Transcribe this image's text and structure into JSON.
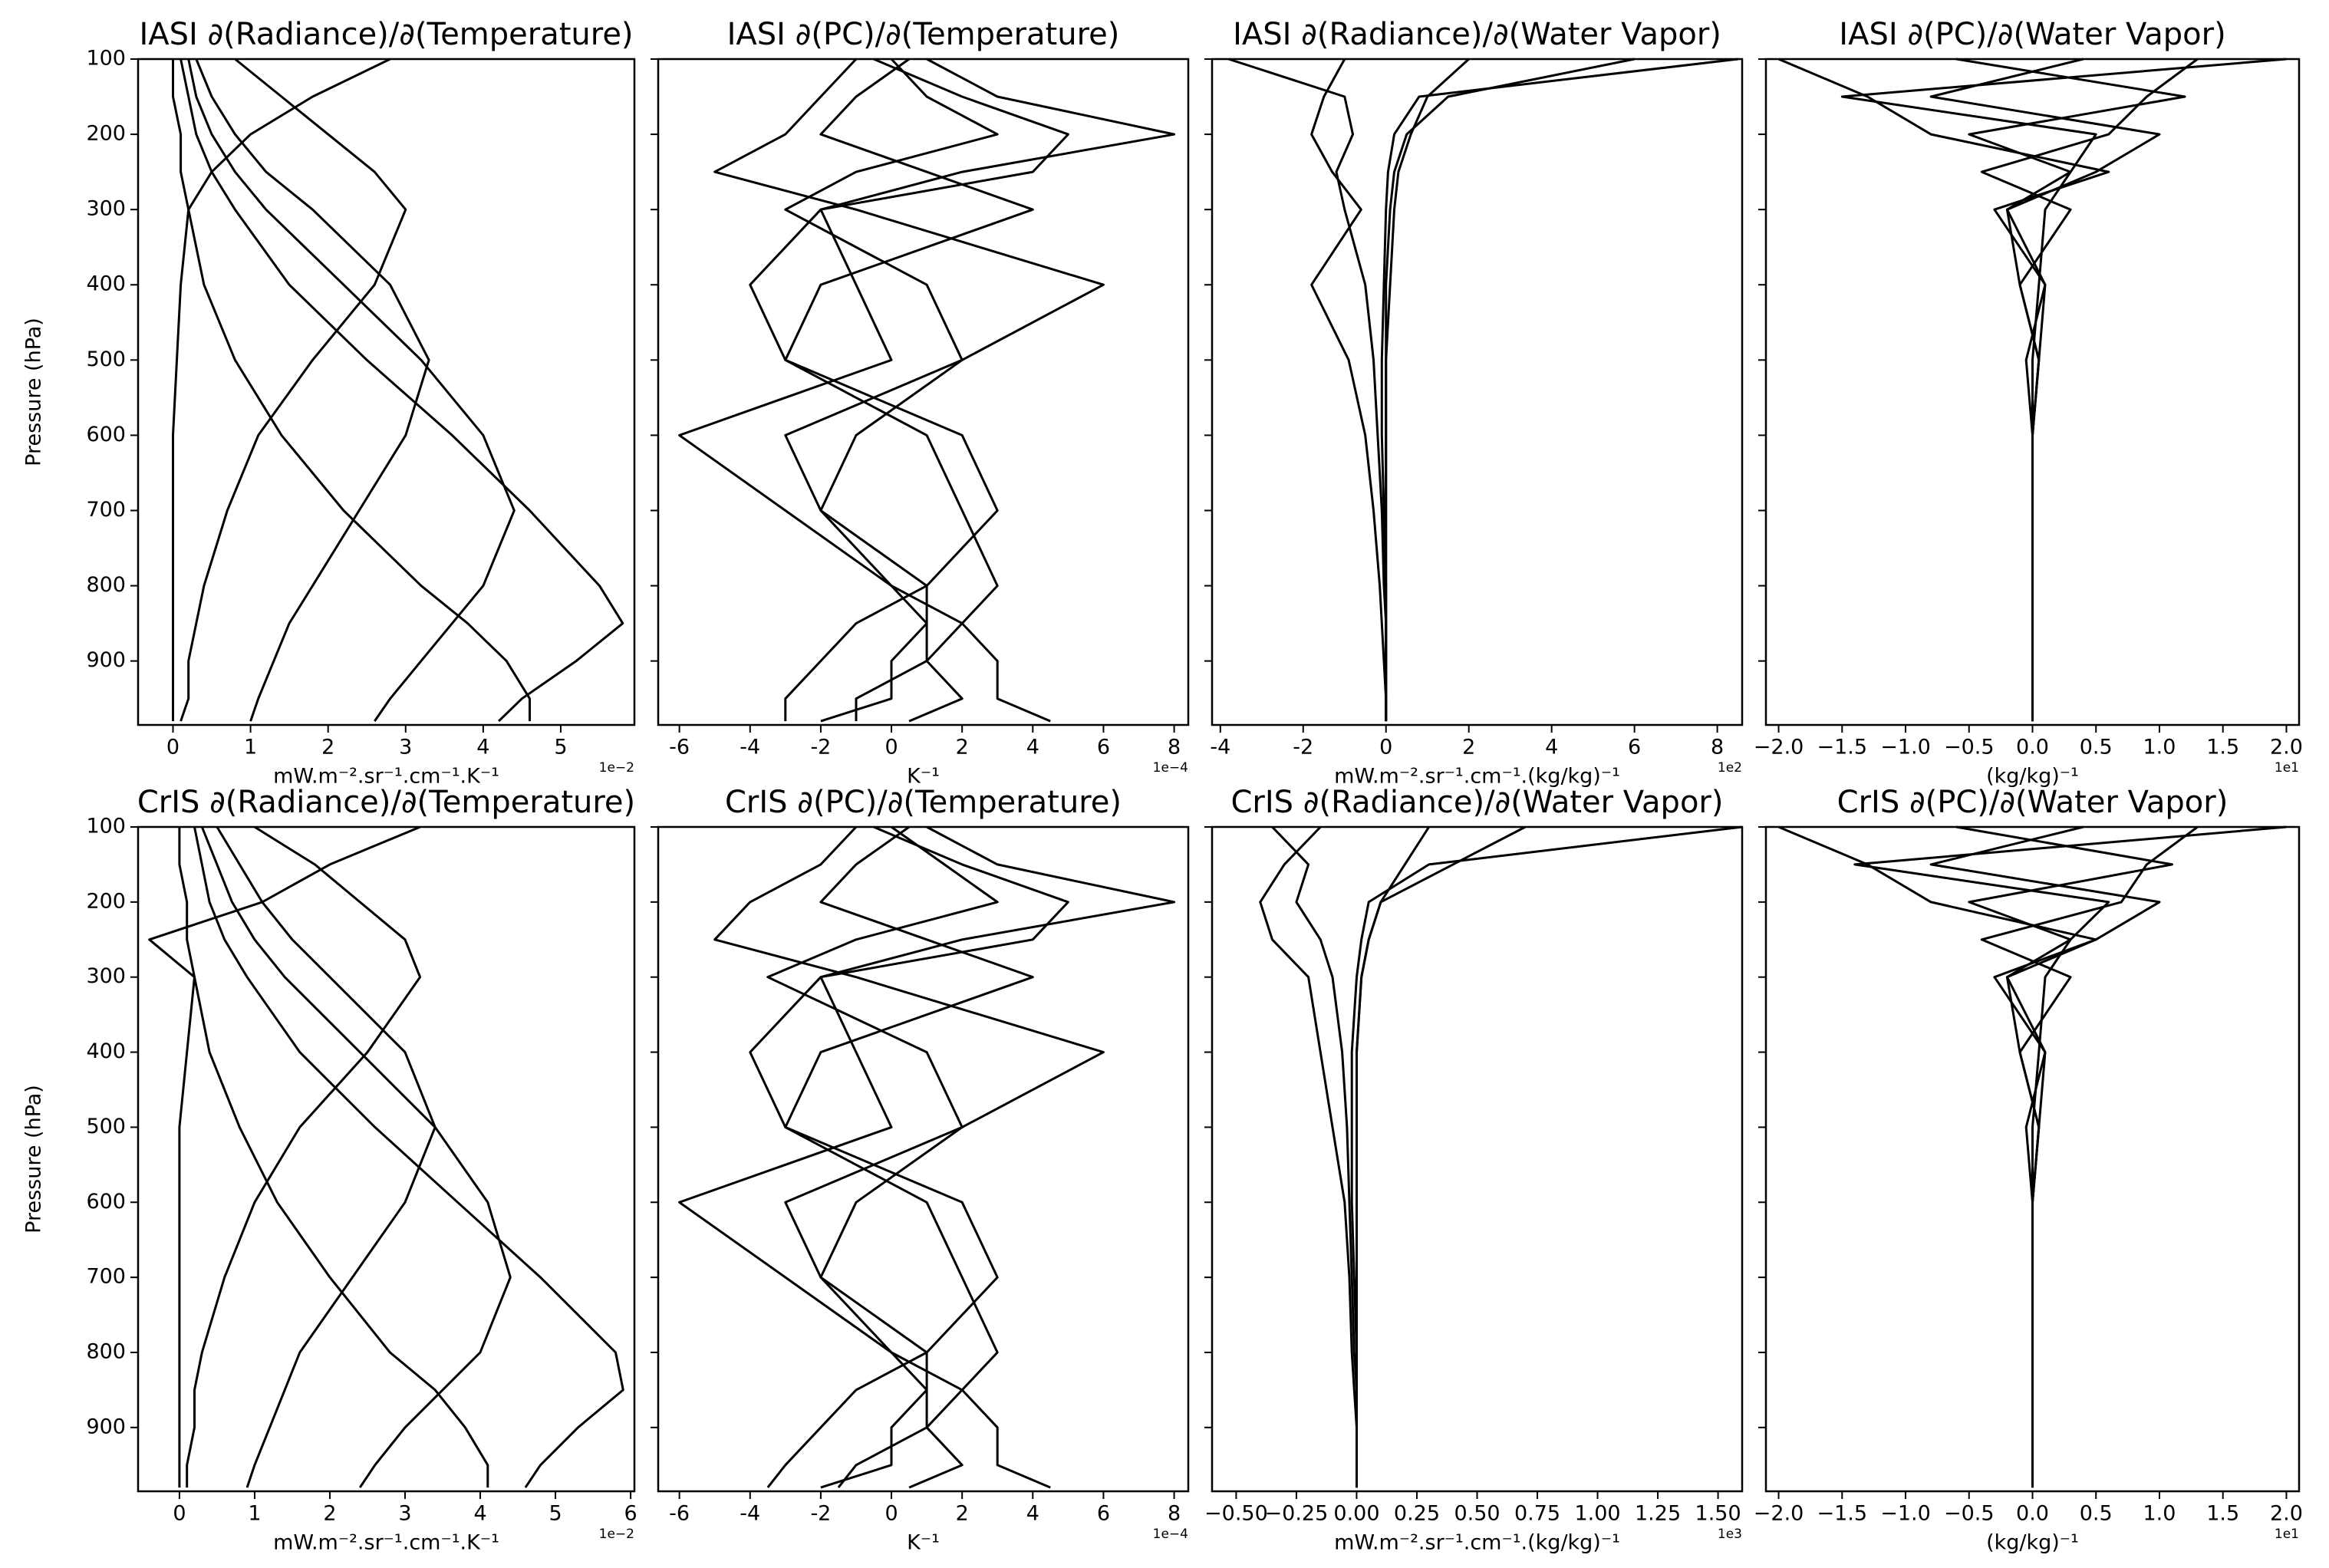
{
  "chart_data": [
    {
      "type": "line",
      "title": "IASI ∂(Radiance)/∂(Temperature)",
      "xlabel": "mW.m⁻².sr⁻¹.cm⁻¹.K⁻¹",
      "x_offset_label": "1e−2",
      "ylabel": "Pressure (hPa)",
      "ytick_labels": true,
      "color": "#000000",
      "xlim": [
        -0.45,
        5.95
      ],
      "xticks": [
        0,
        1,
        2,
        3,
        4,
        5
      ],
      "ylim": [
        985,
        100
      ],
      "yticks": [
        100,
        200,
        300,
        400,
        500,
        600,
        700,
        800,
        900
      ],
      "pressure": [
        100,
        150,
        200,
        250,
        300,
        400,
        500,
        600,
        700,
        800,
        850,
        900,
        950,
        980
      ],
      "series": [
        {
          "values": [
            0.1,
            0.2,
            0.3,
            0.5,
            0.8,
            1.5,
            2.5,
            3.6,
            4.6,
            5.5,
            5.8,
            5.2,
            4.5,
            4.2
          ]
        },
        {
          "values": [
            0.2,
            0.3,
            0.5,
            0.8,
            1.2,
            2.2,
            3.2,
            4.0,
            4.4,
            4.0,
            3.6,
            3.2,
            2.8,
            2.6
          ]
        },
        {
          "values": [
            0.3,
            0.5,
            0.8,
            1.2,
            1.8,
            2.8,
            3.3,
            3.0,
            2.4,
            1.8,
            1.5,
            1.3,
            1.1,
            1.0
          ]
        },
        {
          "values": [
            0.8,
            1.4,
            2.0,
            2.6,
            3.0,
            2.6,
            1.8,
            1.1,
            0.7,
            0.4,
            0.3,
            0.2,
            0.2,
            0.1
          ]
        },
        {
          "values": [
            0,
            0,
            0.1,
            0.1,
            0.2,
            0.4,
            0.8,
            1.4,
            2.2,
            3.2,
            3.8,
            4.3,
            4.6,
            4.6
          ]
        },
        {
          "values": [
            2.8,
            1.8,
            1.0,
            0.5,
            0.2,
            0.1,
            0.05,
            0,
            0,
            0,
            0,
            0,
            0,
            0
          ]
        }
      ]
    },
    {
      "type": "line",
      "title": "IASI ∂(PC)/∂(Temperature)",
      "xlabel": "K⁻¹",
      "x_offset_label": "1e−4",
      "ytick_labels": false,
      "color": "#000000",
      "xlim": [
        -6.6,
        8.4
      ],
      "xticks": [
        -6,
        -4,
        -2,
        0,
        2,
        4,
        6,
        8
      ],
      "ylim": [
        985,
        100
      ],
      "yticks": [
        100,
        200,
        300,
        400,
        500,
        600,
        700,
        800,
        900
      ],
      "pressure": [
        100,
        150,
        200,
        250,
        300,
        400,
        500,
        600,
        700,
        800,
        850,
        900,
        950,
        980
      ],
      "series": [
        {
          "values": [
            0,
            1,
            3,
            -1,
            -3,
            1,
            2,
            -1,
            -2,
            0,
            1,
            1,
            -1,
            -1
          ]
        },
        {
          "values": [
            1,
            3,
            8,
            2,
            -2,
            -1,
            0,
            -6,
            -3,
            0,
            2,
            3,
            3,
            4.5
          ]
        },
        {
          "values": [
            -1,
            -2,
            -3,
            -5,
            -1,
            6,
            2,
            -3,
            -2,
            1,
            1,
            0,
            0,
            -2
          ]
        },
        {
          "values": [
            0.5,
            -1,
            -2,
            1,
            4,
            -2,
            -3,
            1,
            2,
            3,
            2,
            1,
            2,
            0.5
          ]
        },
        {
          "values": [
            -0.5,
            2,
            5,
            4,
            -2,
            -4,
            -3,
            2,
            3,
            1,
            -1,
            -2,
            -3,
            -3
          ]
        }
      ]
    },
    {
      "type": "line",
      "title": "IASI ∂(Radiance)/∂(Water Vapor)",
      "xlabel": "mW.m⁻².sr⁻¹.cm⁻¹.(kg/kg)⁻¹",
      "x_offset_label": "1e2",
      "ytick_labels": false,
      "color": "#000000",
      "xlim": [
        -4.2,
        8.6
      ],
      "xticks": [
        -4,
        -2,
        0,
        2,
        4,
        6,
        8
      ],
      "ylim": [
        985,
        100
      ],
      "yticks": [
        100,
        200,
        300,
        400,
        500,
        600,
        700,
        800,
        900
      ],
      "pressure": [
        100,
        150,
        200,
        250,
        300,
        400,
        500,
        600,
        700,
        800,
        850,
        900,
        950,
        980
      ],
      "series": [
        {
          "values": [
            8.5,
            0.8,
            0.2,
            0.05,
            0,
            -0.05,
            -0.1,
            -0.1,
            -0.05,
            0,
            0,
            0,
            0,
            0
          ]
        },
        {
          "values": [
            6,
            1.5,
            0.5,
            0.2,
            0.1,
            0,
            0,
            0,
            0,
            0,
            0,
            0,
            0,
            0
          ]
        },
        {
          "values": [
            -3.8,
            -1,
            -0.8,
            -1.2,
            -1,
            -0.5,
            -0.3,
            -0.2,
            -0.1,
            -0.05,
            0,
            0,
            0,
            0
          ]
        },
        {
          "values": [
            -1,
            -1.5,
            -1.8,
            -1.3,
            -0.6,
            -1.8,
            -0.9,
            -0.5,
            -0.3,
            -0.15,
            -0.1,
            -0.05,
            0,
            0
          ]
        },
        {
          "values": [
            2,
            1,
            0.6,
            0.3,
            0.2,
            0.1,
            0,
            0,
            0,
            0,
            0,
            0,
            0,
            0
          ]
        }
      ]
    },
    {
      "type": "line",
      "title": "IASI ∂(PC)/∂(Water Vapor)",
      "xlabel": "(kg/kg)⁻¹",
      "x_offset_label": "1e1",
      "ytick_labels": false,
      "color": "#000000",
      "xlim": [
        -2.1,
        2.1
      ],
      "xticks": [
        {
          "value": -2,
          "label": "−2.0"
        },
        {
          "value": -1.5,
          "label": "−1.5"
        },
        {
          "value": -1,
          "label": "−1.0"
        },
        {
          "value": -0.5,
          "label": "−0.5"
        },
        {
          "value": 0,
          "label": "0.0"
        },
        0.5,
        {
          "value": 1,
          "label": "1.0"
        },
        1.5,
        {
          "value": 2,
          "label": "2.0"
        }
      ],
      "ylim": [
        985,
        100
      ],
      "yticks": [
        100,
        200,
        300,
        400,
        500,
        600,
        700,
        800,
        900
      ],
      "pressure": [
        100,
        150,
        200,
        250,
        300,
        400,
        500,
        600,
        700,
        800,
        850,
        900,
        950,
        980
      ],
      "series": [
        {
          "values": [
            2.0,
            -1.5,
            0.5,
            0.3,
            0.1,
            0.05,
            0,
            0,
            0,
            0,
            0,
            0,
            0,
            0
          ]
        },
        {
          "values": [
            -2.0,
            -1.3,
            -0.8,
            0.6,
            -0.3,
            0.1,
            0.05,
            0,
            0,
            0,
            0,
            0,
            0,
            0
          ]
        },
        {
          "values": [
            1.3,
            0.9,
            0.6,
            -0.4,
            0.3,
            -0.1,
            0.05,
            0,
            0,
            0,
            0,
            0,
            0,
            0
          ]
        },
        {
          "values": [
            -0.6,
            1.2,
            -0.5,
            0.3,
            -0.2,
            0.1,
            -0.05,
            0,
            0,
            0,
            0,
            0,
            0,
            0
          ]
        },
        {
          "values": [
            0.4,
            -0.8,
            1,
            0.5,
            -0.2,
            -0.1,
            0.05,
            0,
            0,
            0,
            0,
            0,
            0,
            0
          ]
        }
      ]
    },
    {
      "type": "line",
      "title": "CrIS ∂(Radiance)/∂(Temperature)",
      "xlabel": "mW.m⁻².sr⁻¹.cm⁻¹.K⁻¹",
      "x_offset_label": "1e−2",
      "ylabel": "Pressure (hPa)",
      "ytick_labels": true,
      "color": "#000000",
      "xlim": [
        -0.55,
        6.05
      ],
      "xticks": [
        0,
        1,
        2,
        3,
        4,
        5,
        6
      ],
      "ylim": [
        985,
        100
      ],
      "yticks": [
        100,
        200,
        300,
        400,
        500,
        600,
        700,
        800,
        900
      ],
      "pressure": [
        100,
        150,
        200,
        250,
        300,
        400,
        500,
        600,
        700,
        800,
        850,
        900,
        950,
        980
      ],
      "series": [
        {
          "values": [
            0.2,
            0.3,
            0.4,
            0.6,
            0.9,
            1.6,
            2.6,
            3.7,
            4.8,
            5.8,
            5.9,
            5.3,
            4.8,
            4.6
          ]
        },
        {
          "values": [
            0.3,
            0.5,
            0.7,
            1.0,
            1.4,
            2.4,
            3.4,
            4.1,
            4.4,
            4.0,
            3.5,
            3.0,
            2.6,
            2.4
          ]
        },
        {
          "values": [
            0.5,
            0.8,
            1.1,
            1.5,
            2.0,
            3.0,
            3.4,
            3.0,
            2.3,
            1.6,
            1.4,
            1.2,
            1.0,
            0.9
          ]
        },
        {
          "values": [
            1.0,
            1.8,
            2.4,
            3.0,
            3.2,
            2.5,
            1.6,
            1.0,
            0.6,
            0.3,
            0.2,
            0.2,
            0.1,
            0.1
          ]
        },
        {
          "values": [
            0,
            0,
            0.1,
            0.1,
            0.2,
            0.4,
            0.8,
            1.3,
            2.0,
            2.8,
            3.4,
            3.8,
            4.1,
            4.1
          ]
        },
        {
          "values": [
            3.2,
            2.0,
            1.1,
            -0.4,
            0.2,
            0.1,
            0,
            0,
            0,
            0,
            0,
            0,
            0,
            0
          ]
        }
      ]
    },
    {
      "type": "line",
      "title": "CrIS ∂(PC)/∂(Temperature)",
      "xlabel": "K⁻¹",
      "x_offset_label": "1e−4",
      "ytick_labels": false,
      "color": "#000000",
      "xlim": [
        -6.6,
        8.4
      ],
      "xticks": [
        -6,
        -4,
        -2,
        0,
        2,
        4,
        6,
        8
      ],
      "ylim": [
        985,
        100
      ],
      "yticks": [
        100,
        200,
        300,
        400,
        500,
        600,
        700,
        800,
        900
      ],
      "pressure": [
        100,
        150,
        200,
        250,
        300,
        400,
        500,
        600,
        700,
        800,
        850,
        900,
        950,
        980
      ],
      "series": [
        {
          "values": [
            0,
            1.5,
            3,
            -1,
            -3.5,
            1,
            2,
            -1,
            -2,
            0,
            1,
            1,
            -1,
            -1.5
          ]
        },
        {
          "values": [
            1,
            3,
            8,
            2,
            -2,
            -1,
            0,
            -6,
            -3,
            0,
            2,
            3,
            3,
            4.5
          ]
        },
        {
          "values": [
            -1,
            -2,
            -4,
            -5,
            -1,
            6,
            2,
            -3,
            -2,
            1,
            1,
            0,
            0,
            -2
          ]
        },
        {
          "values": [
            0.5,
            -1,
            -2,
            1,
            4,
            -2,
            -3,
            1,
            2,
            3,
            2,
            1,
            2,
            0.5
          ]
        },
        {
          "values": [
            -0.5,
            2,
            5,
            4,
            -2,
            -4,
            -3,
            2,
            3,
            1,
            -1,
            -2,
            -3,
            -3.5
          ]
        }
      ]
    },
    {
      "type": "line",
      "title": "CrIS ∂(Radiance)/∂(Water Vapor)",
      "xlabel": "mW.m⁻².sr⁻¹.cm⁻¹.(kg/kg)⁻¹",
      "x_offset_label": "1e3",
      "ytick_labels": false,
      "color": "#000000",
      "xlim": [
        -0.6,
        1.6
      ],
      "xticks": [
        {
          "value": -0.5,
          "label": "−0.50"
        },
        {
          "value": -0.25,
          "label": "−0.25"
        },
        {
          "value": 0,
          "label": "0.00"
        },
        0.25,
        {
          "value": 0.5,
          "label": "0.50"
        },
        0.75,
        {
          "value": 1,
          "label": "1.00"
        },
        1.25,
        {
          "value": 1.5,
          "label": "1.50"
        }
      ],
      "ylim": [
        985,
        100
      ],
      "yticks": [
        100,
        200,
        300,
        400,
        500,
        600,
        700,
        800,
        900
      ],
      "pressure": [
        100,
        150,
        200,
        250,
        300,
        400,
        500,
        600,
        700,
        800,
        850,
        900,
        950,
        980
      ],
      "series": [
        {
          "values": [
            1.6,
            0.3,
            0.05,
            0.02,
            0,
            -0.02,
            -0.02,
            -0.02,
            -0.01,
            0,
            0,
            0,
            0,
            0
          ]
        },
        {
          "values": [
            0.7,
            0.4,
            0.1,
            0.05,
            0.02,
            0,
            0,
            0,
            0,
            0,
            0,
            0,
            0,
            0
          ]
        },
        {
          "values": [
            -0.35,
            -0.2,
            -0.25,
            -0.15,
            -0.1,
            -0.06,
            -0.04,
            -0.03,
            -0.02,
            -0.01,
            0,
            0,
            0,
            0
          ]
        },
        {
          "values": [
            -0.15,
            -0.3,
            -0.4,
            -0.35,
            -0.2,
            -0.15,
            -0.1,
            -0.05,
            -0.03,
            -0.02,
            -0.01,
            0,
            0,
            0
          ]
        },
        {
          "values": [
            0.3,
            0.2,
            0.1,
            0.05,
            0.02,
            0,
            0,
            0,
            0,
            0,
            0,
            0,
            0,
            0
          ]
        }
      ]
    },
    {
      "type": "line",
      "title": "CrIS ∂(PC)/∂(Water Vapor)",
      "xlabel": "(kg/kg)⁻¹",
      "x_offset_label": "1e1",
      "ytick_labels": false,
      "color": "#000000",
      "xlim": [
        -2.1,
        2.1
      ],
      "xticks": [
        {
          "value": -2,
          "label": "−2.0"
        },
        {
          "value": -1.5,
          "label": "−1.5"
        },
        {
          "value": -1,
          "label": "−1.0"
        },
        {
          "value": -0.5,
          "label": "−0.5"
        },
        {
          "value": 0,
          "label": "0.0"
        },
        0.5,
        {
          "value": 1,
          "label": "1.0"
        },
        1.5,
        {
          "value": 2,
          "label": "2.0"
        }
      ],
      "ylim": [
        985,
        100
      ],
      "yticks": [
        100,
        200,
        300,
        400,
        500,
        600,
        700,
        800,
        900
      ],
      "pressure": [
        100,
        150,
        200,
        250,
        300,
        400,
        500,
        600,
        700,
        800,
        850,
        900,
        950,
        980
      ],
      "series": [
        {
          "values": [
            2.0,
            -1.4,
            0.6,
            0.3,
            0.1,
            0.05,
            0,
            0,
            0,
            0,
            0,
            0,
            0,
            0
          ]
        },
        {
          "values": [
            -2.0,
            -1.3,
            -0.8,
            0.5,
            -0.3,
            0.1,
            0.05,
            0,
            0,
            0,
            0,
            0,
            0,
            0
          ]
        },
        {
          "values": [
            1.3,
            0.9,
            0.7,
            -0.4,
            0.3,
            -0.1,
            0.05,
            0,
            0,
            0,
            0,
            0,
            0,
            0
          ]
        },
        {
          "values": [
            -0.6,
            1.1,
            -0.5,
            0.3,
            -0.2,
            0.1,
            -0.05,
            0,
            0,
            0,
            0,
            0,
            0,
            0
          ]
        },
        {
          "values": [
            0.4,
            -0.8,
            1,
            0.5,
            -0.2,
            -0.1,
            0.05,
            0,
            0,
            0,
            0,
            0,
            0,
            0
          ]
        }
      ]
    }
  ]
}
